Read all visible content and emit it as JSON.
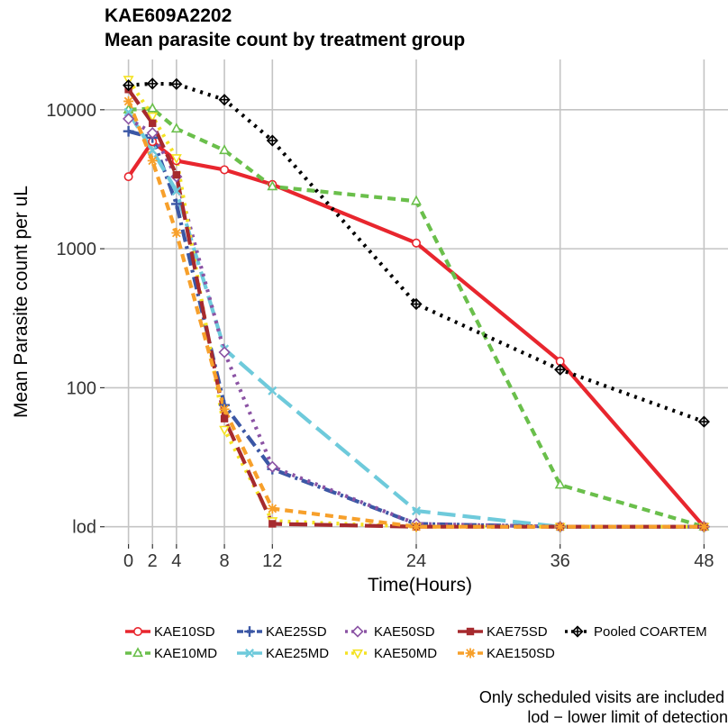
{
  "title": "KAE609A2202",
  "subtitle": "Mean parasite count by treatment group",
  "notes": [
    "Only scheduled visits are included",
    "lod − lower limit of detection"
  ],
  "chart_data": {
    "type": "line",
    "title": "KAE609A2202",
    "subtitle": "Mean parasite count by treatment group",
    "xlabel": "Time(Hours)",
    "ylabel": "Mean Parasite count per uL",
    "x_ticks": [
      0,
      2,
      4,
      8,
      12,
      24,
      36,
      48
    ],
    "xlim": [
      -2,
      50
    ],
    "y_scale": "log",
    "y_ticks": [
      {
        "value": 10,
        "label": "lod"
      },
      {
        "value": 100,
        "label": "100"
      },
      {
        "value": 1000,
        "label": "1000"
      },
      {
        "value": 10000,
        "label": "10000"
      }
    ],
    "ylim": [
      7.5,
      23000
    ],
    "grid": true,
    "legend_position": "bottom",
    "series": [
      {
        "name": "KAE10SD",
        "color": "#e8262e",
        "dash": "solid",
        "marker": "circle",
        "points": [
          [
            0,
            3300
          ],
          [
            2,
            5900
          ],
          [
            4,
            4300
          ],
          [
            8,
            3700
          ],
          [
            12,
            2900
          ],
          [
            24,
            1100
          ],
          [
            36,
            155
          ],
          [
            48,
            10
          ]
        ]
      },
      {
        "name": "KAE10MD",
        "color": "#6abf4b",
        "dash": "dash",
        "marker": "triangle-up",
        "points": [
          [
            0,
            10000
          ],
          [
            2,
            10200
          ],
          [
            4,
            7300
          ],
          [
            8,
            5100
          ],
          [
            12,
            2800
          ],
          [
            24,
            2200
          ],
          [
            36,
            20
          ],
          [
            48,
            10
          ]
        ]
      },
      {
        "name": "KAE25SD",
        "color": "#3b57a5",
        "dash": "dashdot",
        "marker": "plus",
        "points": [
          [
            0,
            7000
          ],
          [
            2,
            6300
          ],
          [
            4,
            2100
          ],
          [
            8,
            75
          ],
          [
            12,
            26
          ],
          [
            24,
            10.5
          ],
          [
            36,
            10
          ],
          [
            48,
            10
          ]
        ]
      },
      {
        "name": "KAE25MD",
        "color": "#6ecadb",
        "dash": "longdash",
        "marker": "x",
        "points": [
          [
            0,
            9600
          ],
          [
            2,
            5100
          ],
          [
            4,
            2600
          ],
          [
            8,
            190
          ],
          [
            12,
            95
          ],
          [
            24,
            13
          ],
          [
            36,
            10
          ],
          [
            48,
            10
          ]
        ]
      },
      {
        "name": "KAE50SD",
        "color": "#8b53a4",
        "dash": "dot",
        "marker": "diamond",
        "points": [
          [
            0,
            8600
          ],
          [
            2,
            6800
          ],
          [
            4,
            3300
          ],
          [
            8,
            180
          ],
          [
            12,
            27
          ],
          [
            24,
            10.5
          ],
          [
            36,
            10
          ],
          [
            48,
            10
          ]
        ]
      },
      {
        "name": "KAE50MD",
        "color": "#f4e223",
        "dash": "dot",
        "marker": "triangle-down",
        "points": [
          [
            0,
            16500
          ],
          [
            2,
            9000
          ],
          [
            4,
            4500
          ],
          [
            8,
            50
          ],
          [
            12,
            11
          ],
          [
            24,
            10
          ],
          [
            36,
            10
          ],
          [
            48,
            10
          ]
        ]
      },
      {
        "name": "KAE75SD",
        "color": "#a62a2e",
        "dash": "longdash",
        "marker": "square",
        "points": [
          [
            0,
            14000
          ],
          [
            2,
            8000
          ],
          [
            4,
            3400
          ],
          [
            8,
            60
          ],
          [
            12,
            10.5
          ],
          [
            24,
            10
          ],
          [
            36,
            10
          ],
          [
            48,
            10
          ]
        ]
      },
      {
        "name": "KAE150SD",
        "color": "#f7a02b",
        "dash": "dash",
        "marker": "asterisk",
        "points": [
          [
            0,
            11500
          ],
          [
            2,
            4300
          ],
          [
            4,
            1300
          ],
          [
            8,
            70
          ],
          [
            12,
            13.5
          ],
          [
            24,
            10
          ],
          [
            36,
            10
          ],
          [
            48,
            10
          ]
        ]
      },
      {
        "name": "Pooled COARTEM",
        "color": "#000000",
        "dash": "dot",
        "marker": "diamond-plus",
        "points": [
          [
            0,
            15000
          ],
          [
            2,
            15400
          ],
          [
            4,
            15300
          ],
          [
            8,
            11800
          ],
          [
            12,
            6000
          ],
          [
            24,
            400
          ],
          [
            36,
            135
          ],
          [
            48,
            57
          ]
        ]
      }
    ]
  }
}
